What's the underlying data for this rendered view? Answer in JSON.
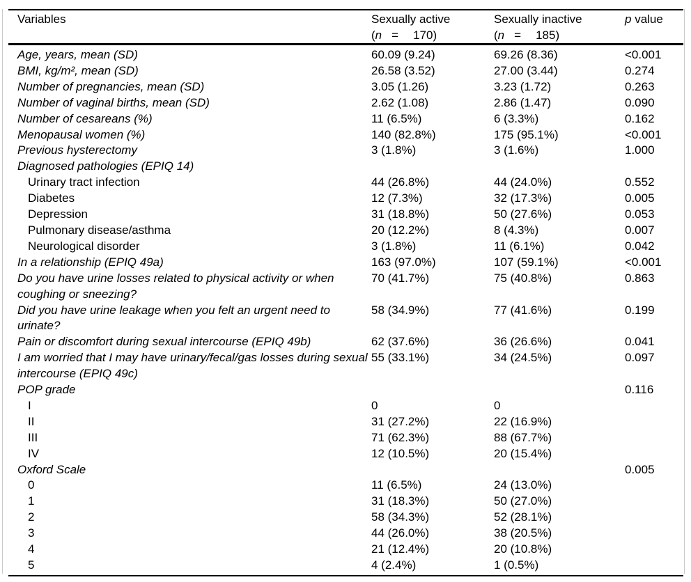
{
  "colors": {
    "background": "#ffffff",
    "text": "#000000",
    "rule": "#000000",
    "frame_line": "#c9c9c9"
  },
  "table": {
    "header": {
      "variables_label": "Variables",
      "active": {
        "title": "Sexually active",
        "open": "(",
        "n_symbol": "n",
        "equals": "=",
        "count": "170",
        "close": ")"
      },
      "inactive": {
        "title": "Sexually inactive",
        "open": "(",
        "n_symbol": "n",
        "equals": "=",
        "count": "185",
        "close": ")"
      },
      "p_symbol": "p",
      "p_rest": " value"
    },
    "rows": [
      {
        "label": "Age, years, mean (SD)",
        "italic": true,
        "indent": false,
        "active": "60.09 (9.24)",
        "inactive": "69.26 (8.36)",
        "p": "<0.001"
      },
      {
        "label": "BMI, kg/m², mean (SD)",
        "italic": true,
        "indent": false,
        "active": "26.58 (3.52)",
        "inactive": "27.00 (3.44)",
        "p": "0.274"
      },
      {
        "label": "Number of pregnancies, mean (SD)",
        "italic": true,
        "indent": false,
        "active": "3.05 (1.26)",
        "inactive": "3.23 (1.72)",
        "p": "0.263"
      },
      {
        "label": "Number of vaginal births, mean (SD)",
        "italic": true,
        "indent": false,
        "active": "2.62 (1.08)",
        "inactive": "2.86 (1.47)",
        "p": "0.090"
      },
      {
        "label": "Number of cesareans (%)",
        "italic": true,
        "indent": false,
        "active": "11 (6.5%)",
        "inactive": "6 (3.3%)",
        "p": "0.162"
      },
      {
        "label": "Menopausal women (%)",
        "italic": true,
        "indent": false,
        "active": "140 (82.8%)",
        "inactive": "175 (95.1%)",
        "p": "<0.001"
      },
      {
        "label": "Previous hysterectomy",
        "italic": true,
        "indent": false,
        "active": "3 (1.8%)",
        "inactive": "3 (1.6%)",
        "p": "1.000"
      },
      {
        "label": "Diagnosed pathologies (EPIQ 14)",
        "italic": true,
        "indent": false,
        "active": "",
        "inactive": "",
        "p": ""
      },
      {
        "label": "Urinary tract infection",
        "italic": false,
        "indent": true,
        "active": "44 (26.8%)",
        "inactive": "44 (24.0%)",
        "p": "0.552"
      },
      {
        "label": "Diabetes",
        "italic": false,
        "indent": true,
        "active": "12 (7.3%)",
        "inactive": "32 (17.3%)",
        "p": "0.005"
      },
      {
        "label": "Depression",
        "italic": false,
        "indent": true,
        "active": "31 (18.8%)",
        "inactive": "50 (27.6%)",
        "p": "0.053"
      },
      {
        "label": "Pulmonary disease/asthma",
        "italic": false,
        "indent": true,
        "active": "20 (12.2%)",
        "inactive": "8 (4.3%)",
        "p": "0.007"
      },
      {
        "label": "Neurological disorder",
        "italic": false,
        "indent": true,
        "active": "3 (1.8%)",
        "inactive": "11 (6.1%)",
        "p": "0.042"
      },
      {
        "label": "In a relationship (EPIQ 49a)",
        "italic": true,
        "indent": false,
        "active": "163 (97.0%)",
        "inactive": "107 (59.1%)",
        "p": "<0.001"
      },
      {
        "label": "Do you have urine losses related to physical activity or when coughing or sneezing?",
        "italic": true,
        "indent": false,
        "active": "70 (41.7%)",
        "inactive": "75 (40.8%)",
        "p": "0.863"
      },
      {
        "label": "Did you have urine leakage when you felt an urgent need to urinate?",
        "italic": true,
        "indent": false,
        "active": "58 (34.9%)",
        "inactive": "77 (41.6%)",
        "p": "0.199"
      },
      {
        "label": "Pain or discomfort during sexual intercourse (EPIQ 49b)",
        "italic": true,
        "indent": false,
        "active": "62 (37.6%)",
        "inactive": "36 (26.6%)",
        "p": "0.041"
      },
      {
        "label": "I am worried that I may have urinary/fecal/gas losses during sexual intercourse (EPIQ 49c)",
        "italic": true,
        "indent": false,
        "active": "55 (33.1%)",
        "inactive": "34 (24.5%)",
        "p": "0.097"
      },
      {
        "label": "POP grade",
        "italic": true,
        "indent": false,
        "active": "",
        "inactive": "",
        "p": "0.116"
      },
      {
        "label": "I",
        "italic": false,
        "indent": true,
        "active": "0",
        "inactive": "0",
        "p": ""
      },
      {
        "label": "II",
        "italic": false,
        "indent": true,
        "active": "31 (27.2%)",
        "inactive": "22 (16.9%)",
        "p": ""
      },
      {
        "label": "III",
        "italic": false,
        "indent": true,
        "active": "71 (62.3%)",
        "inactive": "88 (67.7%)",
        "p": ""
      },
      {
        "label": "IV",
        "italic": false,
        "indent": true,
        "active": "12 (10.5%)",
        "inactive": "20 (15.4%)",
        "p": ""
      },
      {
        "label": "Oxford Scale",
        "italic": true,
        "indent": false,
        "active": "",
        "inactive": "",
        "p": "0.005"
      },
      {
        "label": "0",
        "italic": false,
        "indent": true,
        "active": "11 (6.5%)",
        "inactive": "24 (13.0%)",
        "p": ""
      },
      {
        "label": "1",
        "italic": false,
        "indent": true,
        "active": "31 (18.3%)",
        "inactive": "50 (27.0%)",
        "p": ""
      },
      {
        "label": "2",
        "italic": false,
        "indent": true,
        "active": "58 (34.3%)",
        "inactive": "52 (28.1%)",
        "p": ""
      },
      {
        "label": "3",
        "italic": false,
        "indent": true,
        "active": "44 (26.0%)",
        "inactive": "38 (20.5%)",
        "p": ""
      },
      {
        "label": "4",
        "italic": false,
        "indent": true,
        "active": "21 (12.4%)",
        "inactive": "20 (10.8%)",
        "p": ""
      },
      {
        "label": "5",
        "italic": false,
        "indent": true,
        "active": "4 (2.4%)",
        "inactive": "1 (0.5%)",
        "p": ""
      }
    ]
  }
}
